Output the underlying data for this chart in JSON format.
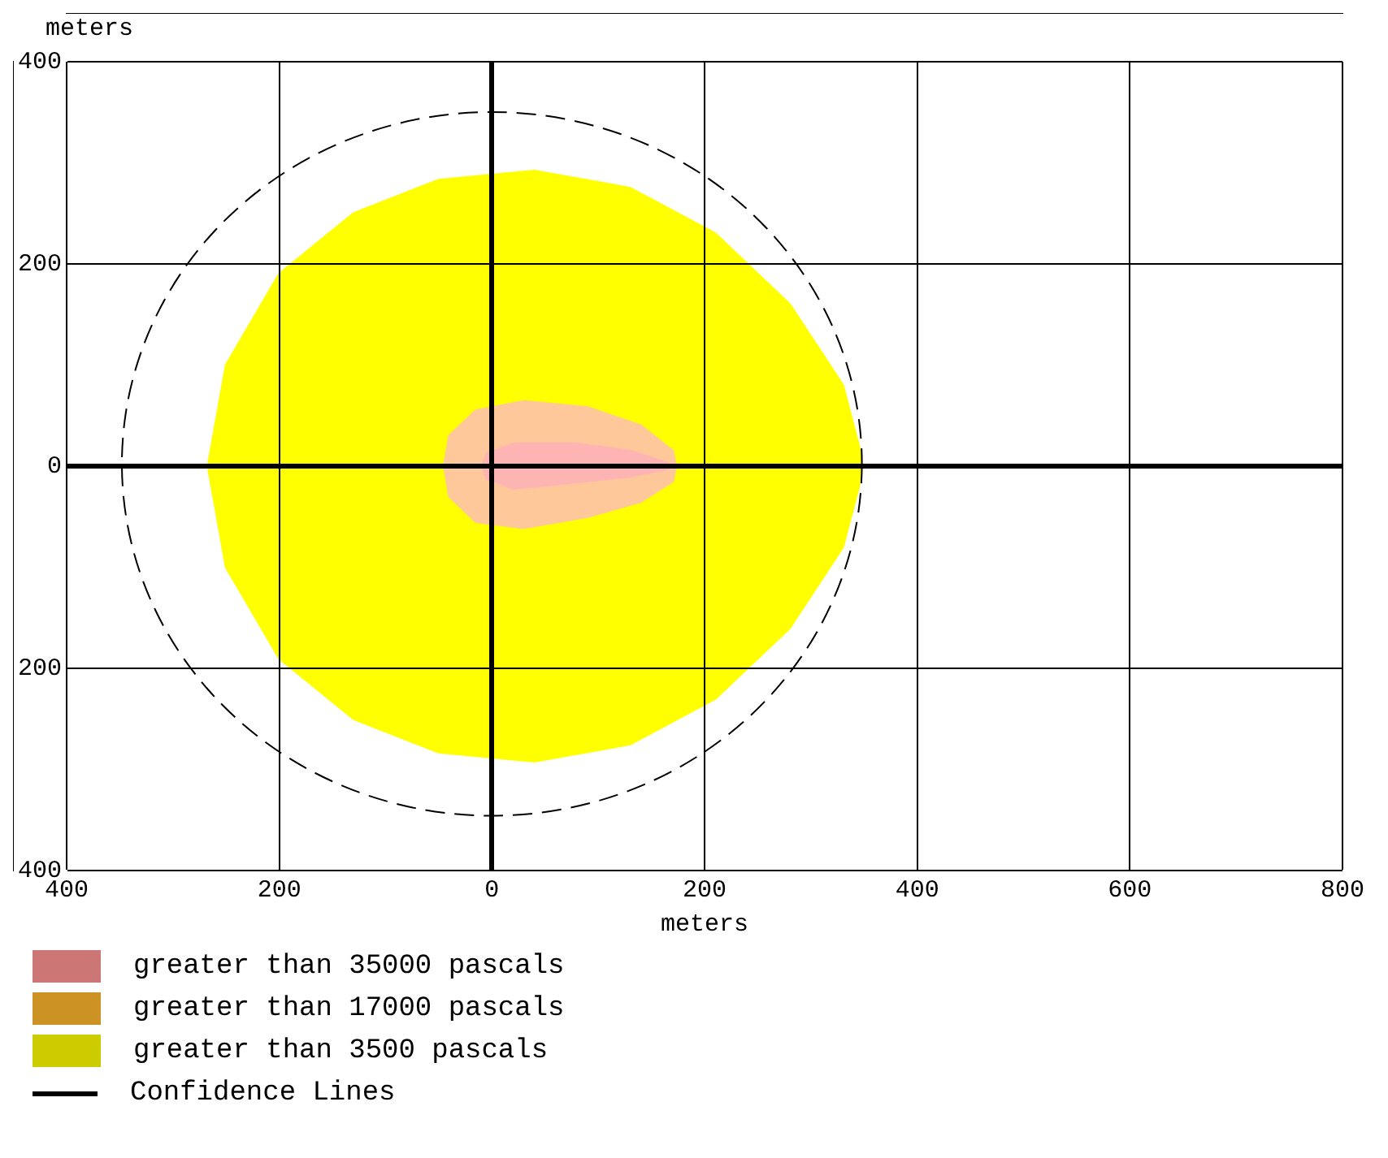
{
  "chart_data": {
    "type": "area",
    "xlabel": "meters",
    "ylabel": "meters",
    "xlim": [
      -400,
      800
    ],
    "xticks": [
      {
        "value": -400,
        "label": "400"
      },
      {
        "value": -200,
        "label": "200"
      },
      0,
      200,
      400,
      600,
      800
    ],
    "ylim": [
      -400,
      400
    ],
    "yticks": [
      {
        "value": -400,
        "label": "400"
      },
      {
        "value": -200,
        "label": "200"
      },
      0,
      200,
      400
    ],
    "grid": true,
    "legend": "bottom left",
    "series": [
      {
        "name": "greater than 35000 pascals",
        "color": "#ffb4b4",
        "x": [
          -9,
          -5,
          20,
          80,
          130,
          165,
          165,
          130,
          60,
          20,
          -5,
          -9
        ],
        "values": [
          0,
          12,
          22,
          22,
          15,
          3,
          -3,
          -10,
          -18,
          -22,
          -12,
          0
        ]
      },
      {
        "name": "greater than 17000 pascals",
        "color": "#ffc89a",
        "x": [
          -45,
          -40,
          -15,
          30,
          90,
          140,
          170,
          173,
          170,
          140,
          90,
          30,
          -15,
          -40,
          -45
        ],
        "values": [
          0,
          30,
          55,
          64,
          58,
          40,
          15,
          0,
          -15,
          -35,
          -50,
          -61,
          -55,
          -30,
          0
        ]
      },
      {
        "name": "greater than 3500 pascals",
        "color": "#ffff00",
        "x": [
          -267,
          -250,
          -200,
          -130,
          -50,
          40,
          130,
          210,
          280,
          330,
          345,
          348,
          345,
          330,
          280,
          210,
          130,
          40,
          -50,
          -130,
          -200,
          -250,
          -267
        ],
        "values": [
          0,
          100,
          190,
          250,
          283,
          292,
          275,
          230,
          160,
          80,
          20,
          0,
          -20,
          -80,
          -160,
          -230,
          -275,
          -292,
          -283,
          -250,
          -190,
          -100,
          0
        ]
      }
    ],
    "annotations": [
      "Confidence Lines"
    ]
  }
}
